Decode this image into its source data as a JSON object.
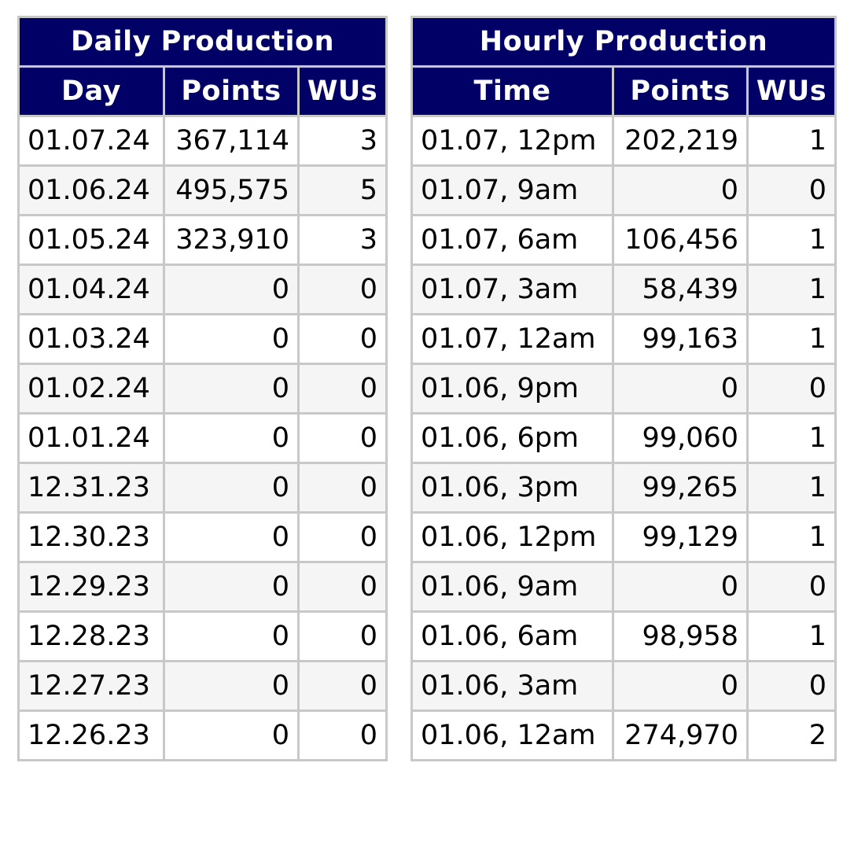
{
  "daily": {
    "title": "Daily Production",
    "columns": [
      "Day",
      "Points",
      "WUs"
    ],
    "rows": [
      [
        "01.07.24",
        "367,114",
        "3"
      ],
      [
        "01.06.24",
        "495,575",
        "5"
      ],
      [
        "01.05.24",
        "323,910",
        "3"
      ],
      [
        "01.04.24",
        "0",
        "0"
      ],
      [
        "01.03.24",
        "0",
        "0"
      ],
      [
        "01.02.24",
        "0",
        "0"
      ],
      [
        "01.01.24",
        "0",
        "0"
      ],
      [
        "12.31.23",
        "0",
        "0"
      ],
      [
        "12.30.23",
        "0",
        "0"
      ],
      [
        "12.29.23",
        "0",
        "0"
      ],
      [
        "12.28.23",
        "0",
        "0"
      ],
      [
        "12.27.23",
        "0",
        "0"
      ],
      [
        "12.26.23",
        "0",
        "0"
      ]
    ]
  },
  "hourly": {
    "title": "Hourly Production",
    "columns": [
      "Time",
      "Points",
      "WUs"
    ],
    "rows": [
      [
        "01.07, 12pm",
        "202,219",
        "1"
      ],
      [
        "01.07, 9am",
        "0",
        "0"
      ],
      [
        "01.07, 6am",
        "106,456",
        "1"
      ],
      [
        "01.07, 3am",
        "58,439",
        "1"
      ],
      [
        "01.07, 12am",
        "99,163",
        "1"
      ],
      [
        "01.06, 9pm",
        "0",
        "0"
      ],
      [
        "01.06, 6pm",
        "99,060",
        "1"
      ],
      [
        "01.06, 3pm",
        "99,265",
        "1"
      ],
      [
        "01.06, 12pm",
        "99,129",
        "1"
      ],
      [
        "01.06, 9am",
        "0",
        "0"
      ],
      [
        "01.06, 6am",
        "98,958",
        "1"
      ],
      [
        "01.06, 3am",
        "0",
        "0"
      ],
      [
        "01.06, 12am",
        "274,970",
        "2"
      ]
    ]
  },
  "colors": {
    "header_bg": "#000066",
    "header_text": "#ffffff",
    "border": "#c8c8c8",
    "row_alt": "#f5f5f5"
  }
}
